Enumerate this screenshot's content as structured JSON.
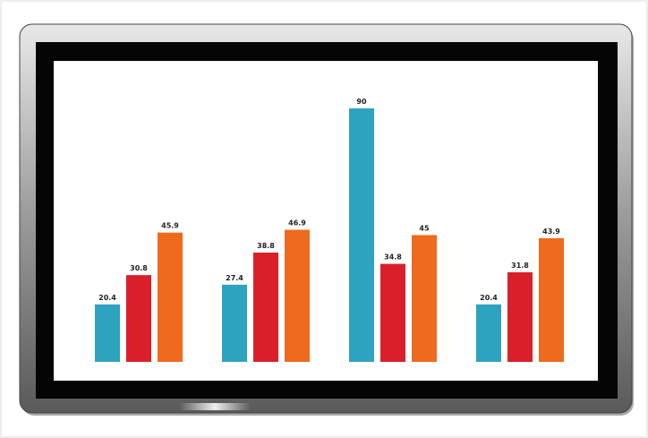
{
  "chart_data": {
    "type": "bar",
    "categories": [
      null,
      null,
      null,
      null
    ],
    "series": [
      {
        "color": "#2ea3c0",
        "values": [
          20.4,
          27.4,
          90,
          20.4
        ]
      },
      {
        "color": "#d9202a",
        "values": [
          30.8,
          38.8,
          34.8,
          31.8
        ]
      },
      {
        "color": "#ee6a1e",
        "values": [
          45.9,
          46.9,
          45,
          43.9
        ]
      }
    ]
  }
}
